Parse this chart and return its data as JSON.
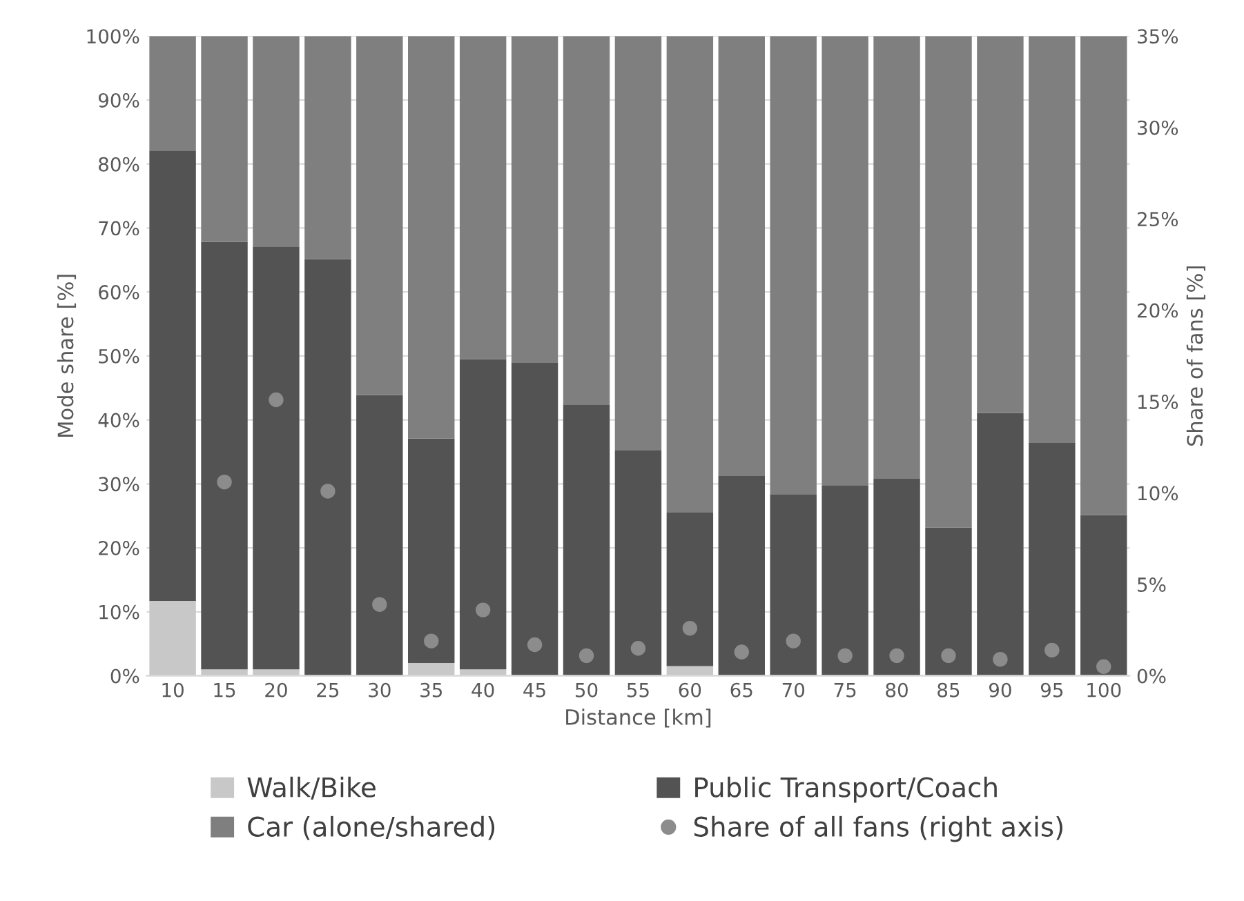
{
  "chart_data": {
    "type": "bar",
    "stacked": true,
    "categories": [
      "10",
      "15",
      "20",
      "25",
      "30",
      "35",
      "40",
      "45",
      "50",
      "55",
      "60",
      "65",
      "70",
      "75",
      "80",
      "85",
      "90",
      "95",
      "100"
    ],
    "xlabel": "Distance [km]",
    "ylabel": "Mode share [%]",
    "y2label": "Share of fans [%]",
    "series": [
      {
        "name": "Walk/Bike",
        "color": "#c8c8c8",
        "values": [
          11.7,
          1,
          1,
          null,
          0,
          2,
          1,
          0,
          0,
          0,
          1.5,
          0,
          0,
          0,
          0,
          0,
          0,
          0,
          0
        ]
      },
      {
        "name": "Public Transport/Coach",
        "color": "#535353",
        "values": [
          70.4,
          66.8,
          66.1,
          65.1,
          43.9,
          35.1,
          48.5,
          48.9,
          42.4,
          35.3,
          24,
          31.3,
          28.3,
          29.7,
          30.8,
          23.2,
          41.1,
          36.4,
          25.1
        ]
      },
      {
        "name": "Car (alone/shared)",
        "color": "#7f7f7f",
        "values": [
          17.9,
          32.2,
          32.9,
          34.9,
          56.1,
          62.9,
          50.5,
          51.1,
          57.6,
          64.7,
          74.5,
          68.7,
          71.7,
          70.3,
          69.2,
          76.8,
          58.9,
          63.6,
          74.9
        ]
      },
      {
        "name": "Share of all fans (right axis)",
        "type": "scatter",
        "axis": "y2",
        "color": "#8c8c8c",
        "x": [
          "15",
          "20",
          "25",
          "30",
          "35",
          "40",
          "45",
          "50",
          "55",
          "60",
          "65",
          "70",
          "75",
          "80",
          "85",
          "90",
          "95",
          "100"
        ],
        "values": [
          10.6,
          15.1,
          10.1,
          3.9,
          1.9,
          3.6,
          1.7,
          1.1,
          1.5,
          2.6,
          1.3,
          1.9,
          1.1,
          1.1,
          1.1,
          0.9,
          1.4,
          0.5
        ]
      }
    ],
    "ylim": [
      0,
      100
    ],
    "yticks": [
      {
        "value": 0,
        "label": "0%"
      },
      {
        "value": 10,
        "label": "10%"
      },
      {
        "value": 20,
        "label": "20%"
      },
      {
        "value": 30,
        "label": "30%"
      },
      {
        "value": 40,
        "label": "40%"
      },
      {
        "value": 50,
        "label": "50%"
      },
      {
        "value": 60,
        "label": "60%"
      },
      {
        "value": 70,
        "label": "70%"
      },
      {
        "value": 80,
        "label": "80%"
      },
      {
        "value": 90,
        "label": "90%"
      },
      {
        "value": 100,
        "label": "100%"
      }
    ],
    "y2lim": [
      0,
      35
    ],
    "y2ticks": [
      {
        "value": 0,
        "label": "0%"
      },
      {
        "value": 5,
        "label": "5%"
      },
      {
        "value": 10,
        "label": "10%"
      },
      {
        "value": 15,
        "label": "15%"
      },
      {
        "value": 20,
        "label": "20%"
      },
      {
        "value": 25,
        "label": "25%"
      },
      {
        "value": 30,
        "label": "30%"
      },
      {
        "value": 35,
        "label": "35%"
      }
    ],
    "grid": "y",
    "legend": "bottom",
    "marker": "circle"
  }
}
